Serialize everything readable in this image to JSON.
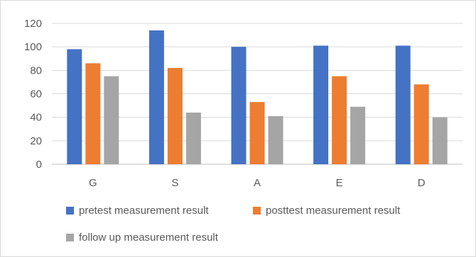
{
  "chart_data": {
    "type": "bar",
    "categories": [
      "G",
      "S",
      "A",
      "E",
      "D"
    ],
    "series": [
      {
        "name": "pretest measurement result",
        "values": [
          98,
          114,
          100,
          101,
          101
        ],
        "color": "#4472c4"
      },
      {
        "name": "posttest measurement result",
        "values": [
          86,
          82,
          53,
          75,
          68
        ],
        "color": "#ed7d31"
      },
      {
        "name": "follow up measurement result",
        "values": [
          75,
          44,
          41,
          49,
          40
        ],
        "color": "#a5a5a5"
      }
    ],
    "title": "",
    "xlabel": "",
    "ylabel": "",
    "ylim": [
      0,
      120
    ],
    "yticks": [
      "0",
      "20",
      "40",
      "60",
      "80",
      "100",
      "120"
    ],
    "grid": true,
    "legend_position": "bottom"
  }
}
